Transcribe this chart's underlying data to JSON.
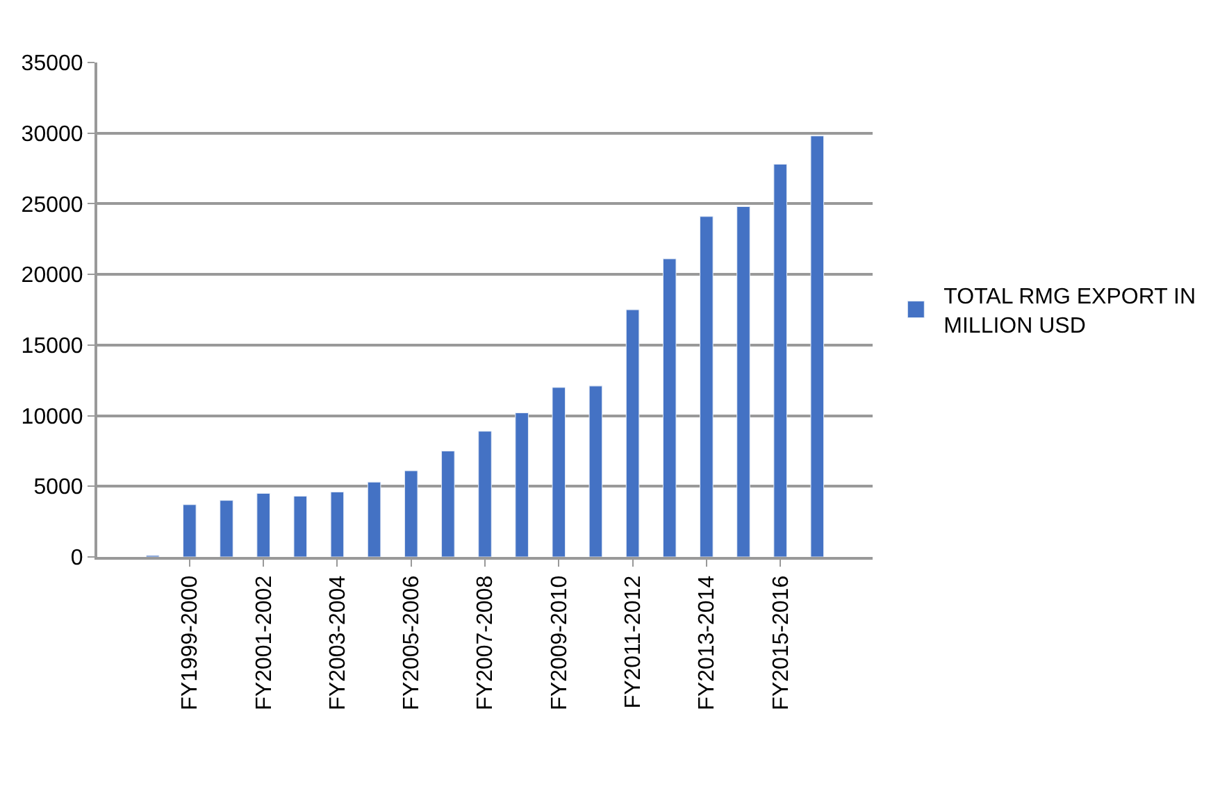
{
  "chart_data": {
    "type": "bar",
    "categories": [
      null,
      null,
      "FY1999-2000",
      null,
      "FY2001-2002",
      null,
      "FY2003-2004",
      null,
      "FY2005-2006",
      null,
      "FY2007-2008",
      null,
      "FY2009-2010",
      null,
      "FY2011-2012",
      null,
      "FY2013-2014",
      null,
      "FY2015-2016",
      null,
      null
    ],
    "series": [
      {
        "name": "TOTAL RMG EXPORT IN MILLION USD",
        "color": "#4472c4",
        "values": [
          null,
          100,
          3700,
          4000,
          4500,
          4300,
          4600,
          5300,
          6100,
          7500,
          8900,
          10200,
          12000,
          12100,
          17500,
          21100,
          24100,
          24800,
          27800,
          29800,
          null
        ]
      }
    ],
    "ylim": [
      0,
      35000
    ],
    "yticks": [
      0,
      5000,
      10000,
      15000,
      20000,
      25000,
      30000,
      35000
    ],
    "grid": "y",
    "legend": "right"
  }
}
